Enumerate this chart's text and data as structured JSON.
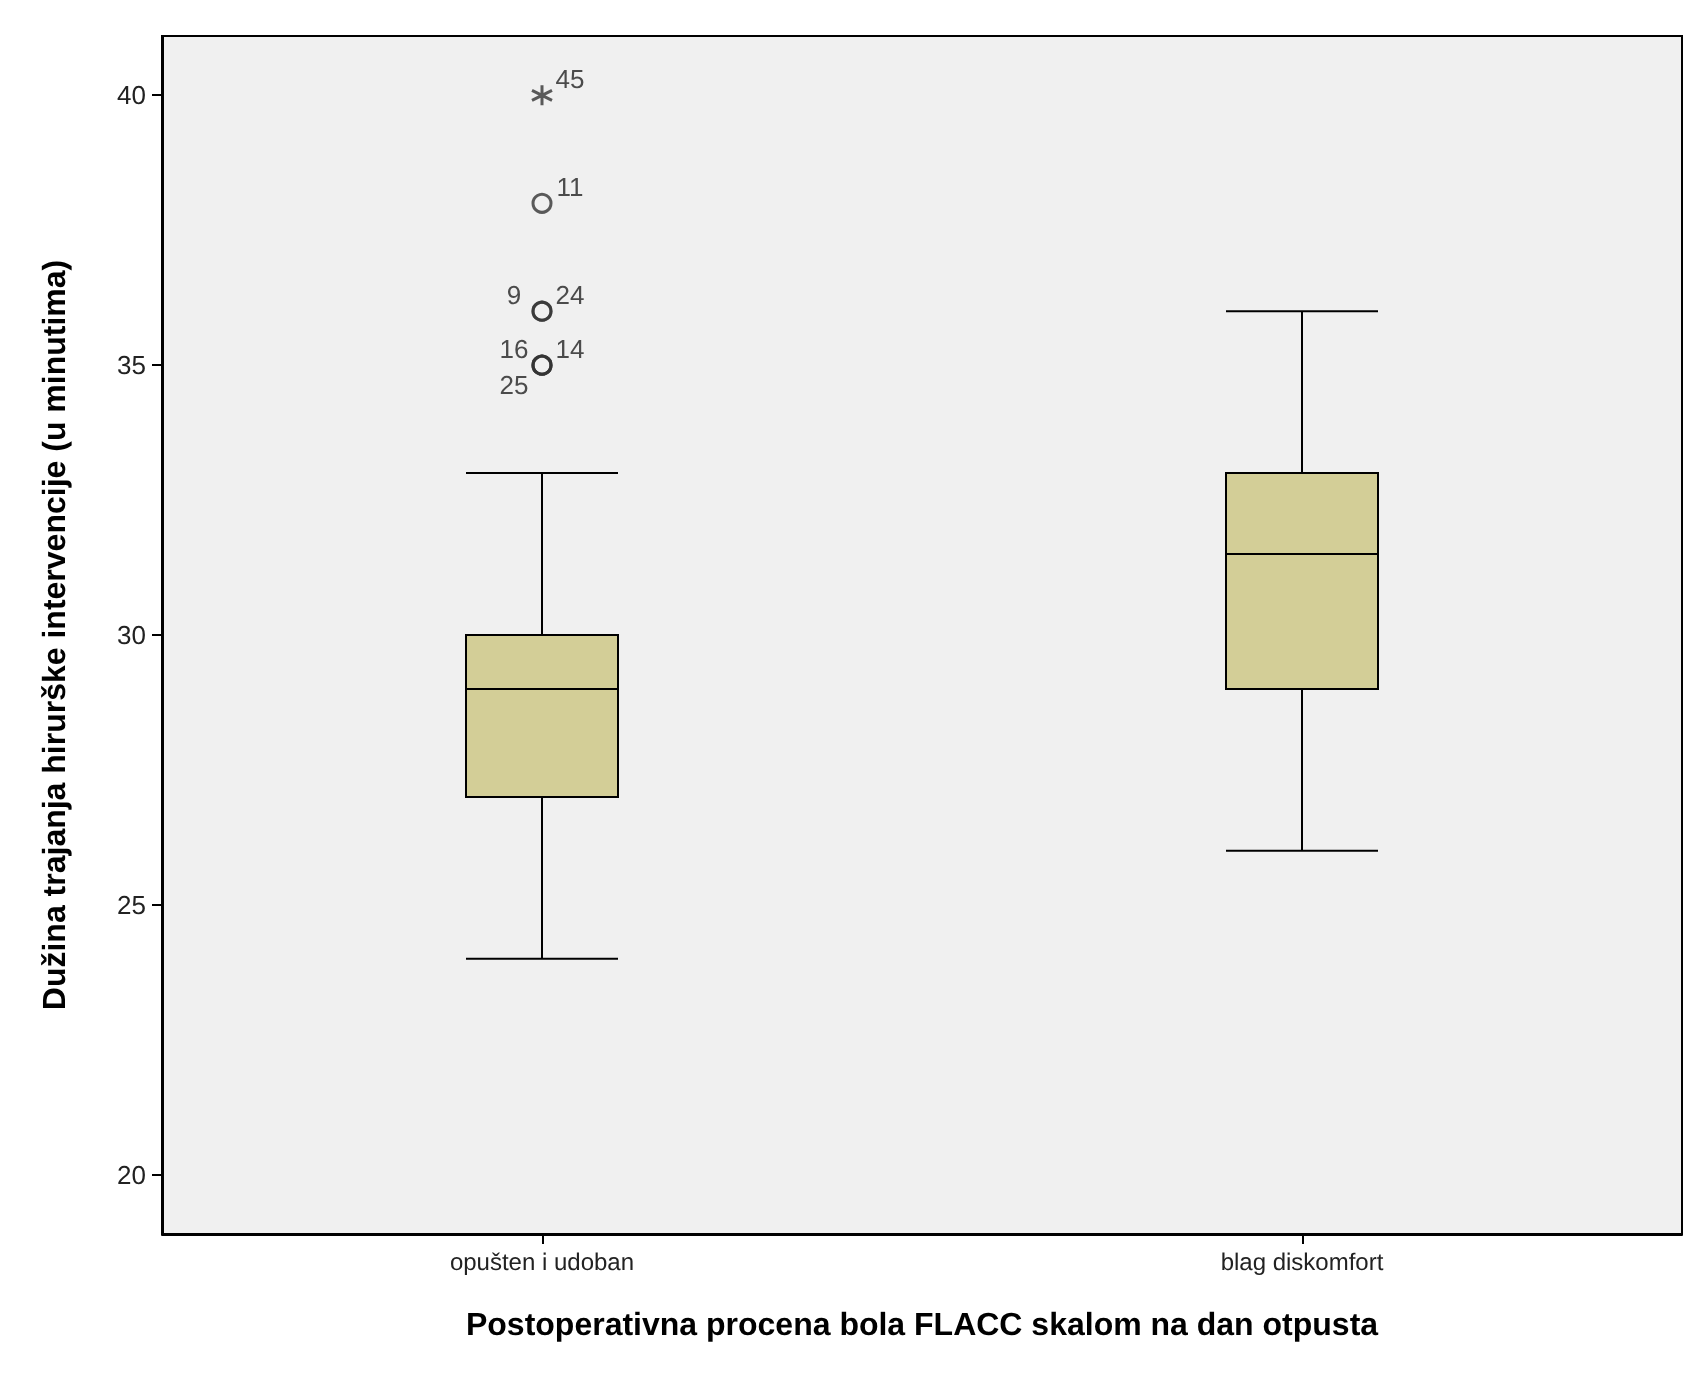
{
  "chart_data": {
    "type": "box",
    "xlabel": "Postoperativna procena bola FLACC skalom na dan otpusta",
    "ylabel": "Dužina trajanja hirurške intervencije (u minutima)",
    "categories": [
      "opušten i udoban",
      "blag diskomfort"
    ],
    "series": [
      {
        "color": "#d3ce97",
        "boxes": [
          {
            "low": 24,
            "q1": 27,
            "median": 29,
            "q3": 30,
            "high": 33
          },
          {
            "low": 26,
            "q1": 29,
            "median": 31.5,
            "q3": 33,
            "high": 36
          }
        ]
      },
      {
        "type": "scatter",
        "marker": "circle",
        "color": "#333333",
        "x": [
          "opušten i udoban",
          "opušten i udoban",
          "opušten i udoban",
          "opušten i udoban",
          "opušten i udoban",
          "opušten i udoban"
        ],
        "values": [
          38,
          36,
          36,
          35,
          35,
          35
        ]
      },
      {
        "type": "scatter",
        "marker": "cross",
        "color": "#333333",
        "x": [
          "opušten i udoban"
        ],
        "values": [
          40
        ]
      }
    ],
    "ylim": [
      18.9,
      41.1
    ],
    "yticks": [
      20,
      25,
      30,
      35,
      40
    ],
    "grid": false,
    "annotations": [
      {
        "text": "45",
        "x": "opušten i udoban",
        "y": 40
      },
      {
        "text": "11",
        "x": "opušten i udoban",
        "y": 38
      },
      {
        "text": "24",
        "x": "opušten i udoban",
        "y": 36
      },
      {
        "text": "9",
        "x": "opušten i udoban",
        "y": 36
      },
      {
        "text": "14",
        "x": "opušten i udoban",
        "y": 35
      },
      {
        "text": "16",
        "x": "opušten i udoban",
        "y": 35
      },
      {
        "text": "25",
        "x": "opušten i udoban",
        "y": 35
      }
    ]
  }
}
